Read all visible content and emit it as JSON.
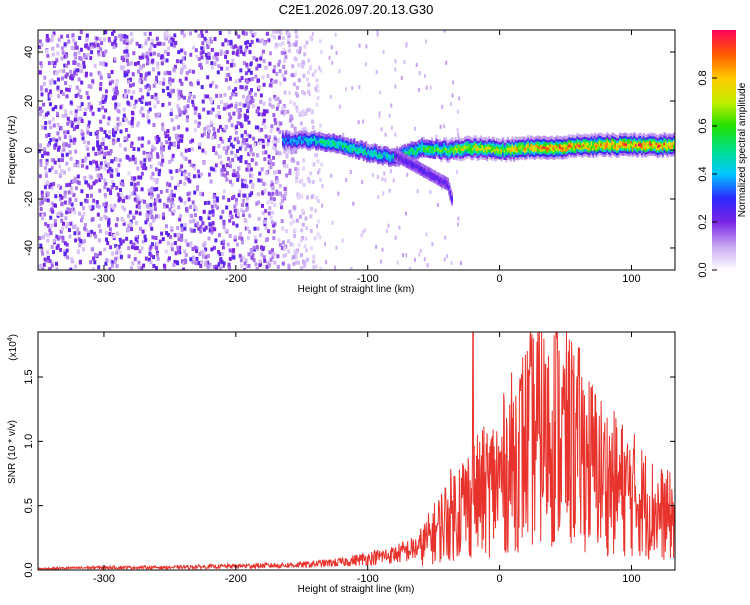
{
  "title": "C2E1.2026.097.20.13.G30",
  "colors": {
    "snr_line": "#e8322c",
    "axis": "#000000",
    "background": "#ffffff"
  },
  "chart_data": [
    {
      "type": "heatmap",
      "title": "C2E1.2026.097.20.13.G30",
      "xlabel": "Height of straight line (km)",
      "ylabel": "Frequency (Hz)",
      "xlim": [
        -350,
        133
      ],
      "ylim": [
        -49,
        49
      ],
      "xticks": [
        -300,
        -200,
        -100,
        0,
        100
      ],
      "yticks": [
        -40,
        -20,
        0,
        20,
        40
      ],
      "x_tick_labels": [
        "-300",
        "-200",
        "-100",
        "0",
        "100"
      ],
      "y_tick_labels": [
        "-40",
        "-20",
        "0",
        "20",
        "40"
      ],
      "colorbar": {
        "label": "Normalized spectral amplitude",
        "range": [
          0,
          1
        ],
        "ticks": [
          0.0,
          0.2,
          0.4,
          0.6,
          0.8
        ],
        "tick_labels": [
          "0.0",
          "0.2",
          "0.4",
          "0.6",
          "0.8"
        ],
        "colormap": "rainbow"
      },
      "ridge": {
        "description_values": "center frequency of main signal vs height",
        "x": [
          -160,
          -140,
          -120,
          -100,
          -80,
          -60,
          -40,
          -20,
          0,
          20,
          40,
          60,
          80,
          100,
          133
        ],
        "y": [
          4,
          4,
          2,
          -1,
          -3,
          1,
          0,
          1,
          0,
          1,
          1,
          2,
          2,
          2,
          2
        ],
        "peak_amplitude": [
          0.4,
          0.5,
          0.55,
          0.5,
          0.5,
          0.6,
          0.65,
          0.8,
          0.75,
          0.85,
          0.95,
          0.85,
          0.9,
          0.95,
          0.9
        ]
      },
      "secondary_branch": {
        "x": [
          -80,
          -70,
          -60,
          -50,
          -40,
          -37
        ],
        "y": [
          -2,
          -5,
          -8,
          -11,
          -14,
          -20
        ]
      },
      "noise_region_x": [
        -350,
        -145
      ]
    },
    {
      "type": "line",
      "xlabel": "Height of straight line (km)",
      "ylabel": "SNR (10 * v/v)",
      "yscale_label": "(x10",
      "yscale_exponent": "4",
      "yscale_suffix": ")",
      "xlim": [
        -350,
        133
      ],
      "ylim": [
        0,
        1.85
      ],
      "xticks": [
        -300,
        -200,
        -100,
        0,
        100
      ],
      "yticks": [
        0.0,
        0.5,
        1.0,
        1.5
      ],
      "x_tick_labels": [
        "-300",
        "-200",
        "-100",
        "0",
        "100"
      ],
      "y_tick_labels": [
        "0.0",
        "0.5",
        "1.0",
        "1.5"
      ],
      "grid": false,
      "series": [
        {
          "x": [
            -350,
            -300,
            -250,
            -200,
            -150,
            -120,
            -100,
            -80,
            -60,
            -50,
            -40,
            -30,
            -20,
            -10,
            0,
            10,
            20,
            30,
            40,
            50,
            60,
            70,
            80,
            90,
            100,
            110,
            120,
            133
          ],
          "y": [
            0.01,
            0.02,
            0.02,
            0.03,
            0.04,
            0.06,
            0.09,
            0.12,
            0.18,
            0.28,
            0.4,
            0.5,
            0.55,
            0.62,
            0.7,
            0.85,
            0.98,
            1.08,
            1.1,
            1.02,
            0.95,
            0.82,
            0.72,
            0.65,
            0.6,
            0.52,
            0.45,
            0.4
          ],
          "spikes": [
            {
              "x": -20,
              "y": 1.85
            },
            {
              "x": 43,
              "y": 1.85
            },
            {
              "x": 35,
              "y": 1.6
            },
            {
              "x": 55,
              "y": 1.55
            }
          ]
        }
      ]
    }
  ]
}
